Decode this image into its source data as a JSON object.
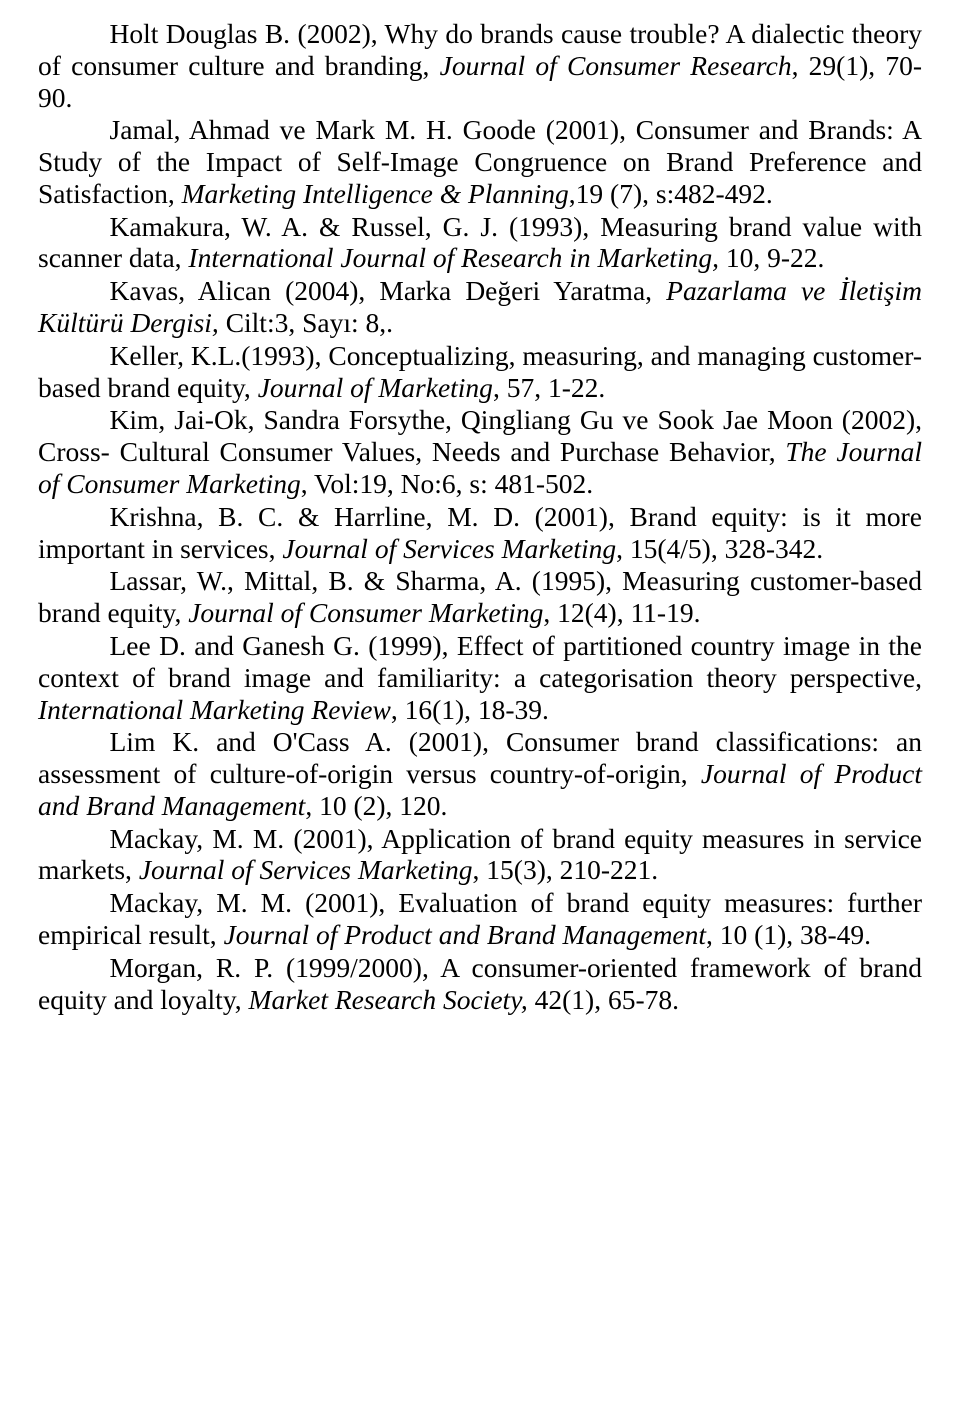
{
  "references": [
    {
      "segments": [
        {
          "t": "Holt Douglas B. (2002), Why do brands cause trouble? A dialectic theory of consumer culture and branding, ",
          "i": false
        },
        {
          "t": "Journal of Consumer Research",
          "i": true
        },
        {
          "t": ", 29(1), 70-90.",
          "i": false
        }
      ]
    },
    {
      "segments": [
        {
          "t": "Jamal, Ahmad ve Mark M. H. Goode (2001), Consumer and Brands: A Study of the Impact of Self-Image Congruence on Brand Preference and Satisfaction, ",
          "i": false
        },
        {
          "t": "Marketing Intelligence & Planning",
          "i": true
        },
        {
          "t": ",19 (7), s:482-492.",
          "i": false
        }
      ]
    },
    {
      "segments": [
        {
          "t": "Kamakura, W. A. & Russel, G. J. (1993), Measuring brand value with scanner data, ",
          "i": false
        },
        {
          "t": "International Journal of Research in Marketing,",
          "i": true
        },
        {
          "t": " 10, 9-22.",
          "i": false
        }
      ]
    },
    {
      "segments": [
        {
          "t": "Kavas, Alican (2004), Marka Değeri Yaratma, ",
          "i": false
        },
        {
          "t": "Pazarlama ve İletişim Kültürü Dergisi,",
          "i": true
        },
        {
          "t": " Cilt:3, Sayı: 8,.",
          "i": false
        }
      ]
    },
    {
      "segments": [
        {
          "t": "Keller, K.L.(1993), Conceptualizing, measuring, and managing customer- based brand equity, ",
          "i": false
        },
        {
          "t": "Journal of Marketing",
          "i": true
        },
        {
          "t": ", 57, 1-22.",
          "i": false
        }
      ]
    },
    {
      "segments": [
        {
          "t": "Kim, Jai-Ok, Sandra Forsythe, Qingliang Gu ve Sook Jae Moon (2002), Cross- Cultural Consumer Values, Needs and Purchase Behavior, ",
          "i": false
        },
        {
          "t": "The Journal of Consumer Marketing",
          "i": true
        },
        {
          "t": ", Vol:19, No:6, s: 481-502.",
          "i": false
        }
      ]
    },
    {
      "segments": [
        {
          "t": "Krishna, B. C. &  Harrline, M. D. (2001), Brand equity: is it more important in services, ",
          "i": false
        },
        {
          "t": "Journal of Services Marketing",
          "i": true
        },
        {
          "t": ", 15(4/5), 328-342.",
          "i": false
        }
      ]
    },
    {
      "segments": [
        {
          "t": "Lassar, W., Mittal, B. & Sharma, A. (1995), Measuring customer-based brand equity, ",
          "i": false
        },
        {
          "t": "Journal of Consumer Marketing",
          "i": true
        },
        {
          "t": ", 12(4), 11-19.",
          "i": false
        }
      ]
    },
    {
      "segments": [
        {
          "t": "Lee D. and Ganesh G. (1999), Effect of partitioned country image in the context of brand image and familiarity: a categorisation theory perspective, ",
          "i": false
        },
        {
          "t": "International Marketing Review",
          "i": true
        },
        {
          "t": ", 16(1), 18-39.",
          "i": false
        }
      ]
    },
    {
      "segments": [
        {
          "t": "Lim K. and O'Cass A. (2001), Consumer brand classifications: an assessment of culture-of-origin versus country-of-origin, ",
          "i": false
        },
        {
          "t": "Journal of Product and Brand Management",
          "i": true
        },
        {
          "t": ", 10 (2), 120.",
          "i": false
        }
      ]
    },
    {
      "segments": [
        {
          "t": "Mackay, M. M. (2001), Application of brand equity measures in service markets, ",
          "i": false
        },
        {
          "t": "Journal of Services Marketing",
          "i": true
        },
        {
          "t": ", 15(3), 210-221.",
          "i": false
        }
      ]
    },
    {
      "segments": [
        {
          "t": "Mackay, M. M. (2001), Evaluation of brand equity measures: further empirical result, ",
          "i": false
        },
        {
          "t": "Journal of Product and Brand Management",
          "i": true
        },
        {
          "t": ", 10 (1), 38-49.",
          "i": false
        }
      ]
    },
    {
      "segments": [
        {
          "t": "Morgan, R. P. (1999/2000), A consumer-oriented framework of brand equity and loyalty, ",
          "i": false
        },
        {
          "t": "Market Research Society,",
          "i": true
        },
        {
          "t": " 42(1), 65-78.",
          "i": false
        }
      ]
    }
  ]
}
